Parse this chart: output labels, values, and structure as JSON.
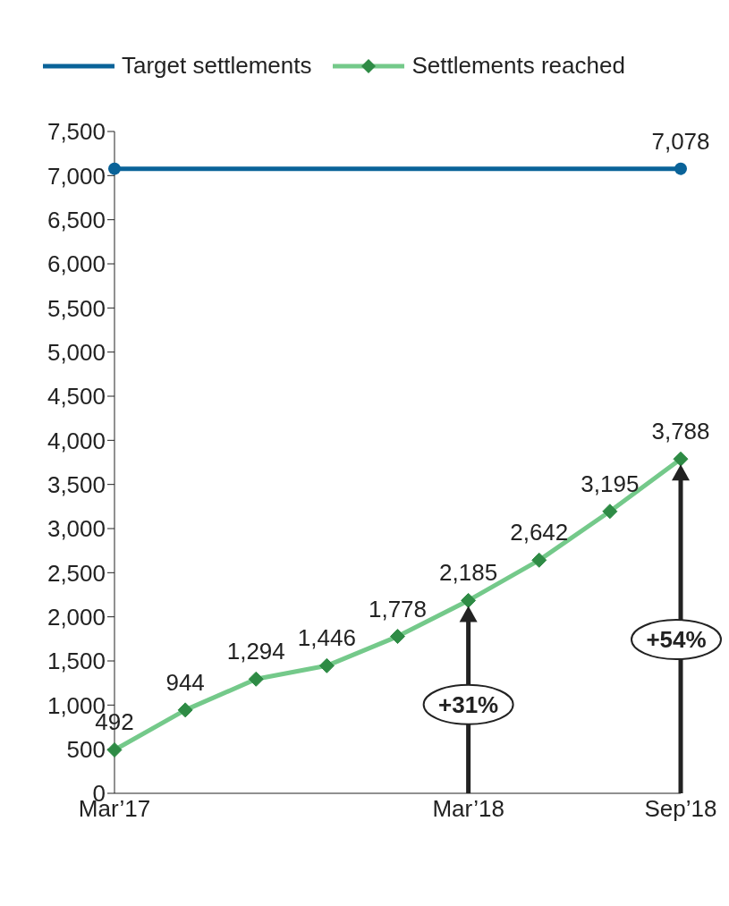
{
  "chart_data": {
    "type": "line",
    "categories": [
      "Mar’17",
      null,
      null,
      null,
      null,
      "Mar’18",
      null,
      null,
      "Sep’18"
    ],
    "series": [
      {
        "name": "Target settlements",
        "color": "#0a6399",
        "marker": "circle",
        "values": [
          7078,
          null,
          null,
          null,
          null,
          null,
          null,
          null,
          7078
        ],
        "value_labels": [
          null,
          null,
          null,
          null,
          null,
          null,
          null,
          null,
          "7,078"
        ]
      },
      {
        "name": "Settlements reached",
        "color": "#74c98a",
        "marker": "diamond",
        "values": [
          492,
          944,
          1294,
          1446,
          1778,
          2185,
          2642,
          3195,
          3788
        ],
        "value_labels": [
          "492",
          "944",
          "1,294",
          "1,446",
          "1,778",
          "2,185",
          "2,642",
          "3,195",
          "3,788"
        ]
      }
    ],
    "ylim": [
      0,
      7500
    ],
    "yticks": [
      0,
      500,
      {
        "value": 1000,
        "label": "1,000"
      },
      {
        "value": 1500,
        "label": "1,500"
      },
      {
        "value": 2000,
        "label": "2,000"
      },
      {
        "value": 2500,
        "label": "2,500"
      },
      {
        "value": 3000,
        "label": "3,000"
      },
      {
        "value": 3500,
        "label": "3,500"
      },
      {
        "value": 4000,
        "label": "4,000"
      },
      {
        "value": 4500,
        "label": "4,500"
      },
      {
        "value": 5000,
        "label": "5,000"
      },
      {
        "value": 5500,
        "label": "5,500"
      },
      {
        "value": 6000,
        "label": "6,000"
      },
      {
        "value": 6500,
        "label": "6,500"
      },
      {
        "value": 7000,
        "label": "7,000"
      },
      {
        "value": 7500,
        "label": "7,500"
      }
    ],
    "grid": false,
    "legend": "top",
    "annotations": [
      "+31%",
      "+54%"
    ]
  }
}
